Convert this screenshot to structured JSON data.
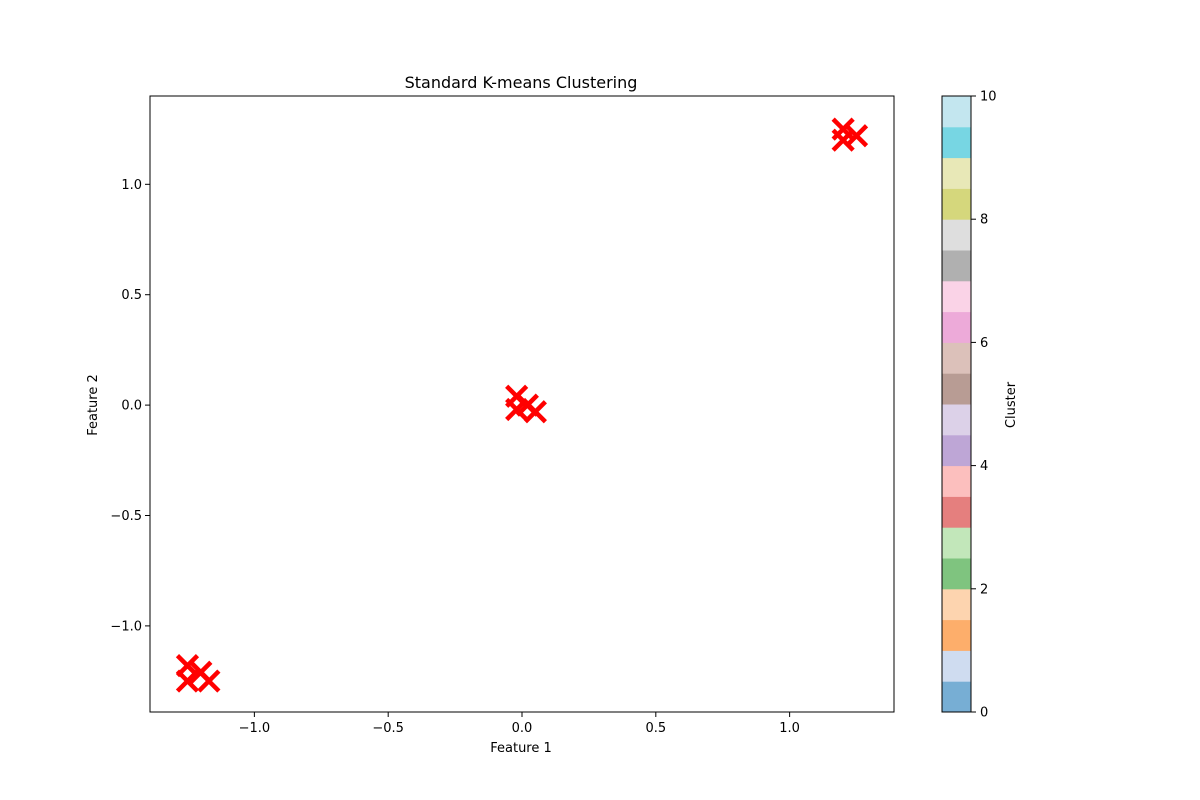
{
  "chart_data": {
    "type": "scatter",
    "title": "Standard K-means Clustering",
    "xlabel": "Feature 1",
    "ylabel": "Feature 2",
    "xlim": [
      -1.39,
      1.39
    ],
    "ylim": [
      -1.39,
      1.4
    ],
    "xticks": [
      -1.0,
      -0.5,
      0.0,
      0.5,
      1.0
    ],
    "xtick_labels": [
      "−1.0",
      "−0.5",
      "0.0",
      "0.5",
      "1.0"
    ],
    "yticks": [
      -1.0,
      -0.5,
      0.0,
      0.5,
      1.0
    ],
    "ytick_labels": [
      "−1.0",
      "−0.5",
      "0.0",
      "0.5",
      "1.0"
    ],
    "grid": false,
    "series": [
      {
        "marker": "x",
        "color": "#ff0000",
        "points": [
          {
            "x": 1.2,
            "y": 1.25
          },
          {
            "x": 1.25,
            "y": 1.22
          },
          {
            "x": 1.2,
            "y": 1.2
          },
          {
            "x": -0.02,
            "y": 0.04
          },
          {
            "x": 0.02,
            "y": 0.0
          },
          {
            "x": -0.02,
            "y": -0.02
          },
          {
            "x": 0.05,
            "y": -0.03
          },
          {
            "x": -1.25,
            "y": -1.18
          },
          {
            "x": -1.2,
            "y": -1.21
          },
          {
            "x": -1.25,
            "y": -1.25
          },
          {
            "x": -1.17,
            "y": -1.25
          }
        ]
      }
    ],
    "colorbar": {
      "label": "Cluster",
      "range": [
        0,
        10
      ],
      "ticks": [
        0,
        2,
        4,
        6,
        8,
        10
      ],
      "tick_labels": [
        "0",
        "2",
        "4",
        "6",
        "8",
        "10"
      ],
      "colors": [
        "#77aed4",
        "#cfdcf0",
        "#fdae6b",
        "#fdd4af",
        "#7fc47f",
        "#c2e7ba",
        "#e57f7e",
        "#fcbfbe",
        "#bea6d6",
        "#dcd1e8",
        "#b89c94",
        "#dcc1ba",
        "#edaad9",
        "#fad3e7",
        "#b0b0b0",
        "#dedede",
        "#d5d77c",
        "#e8e8b7",
        "#77d6e3",
        "#c3e6ef"
      ]
    }
  }
}
